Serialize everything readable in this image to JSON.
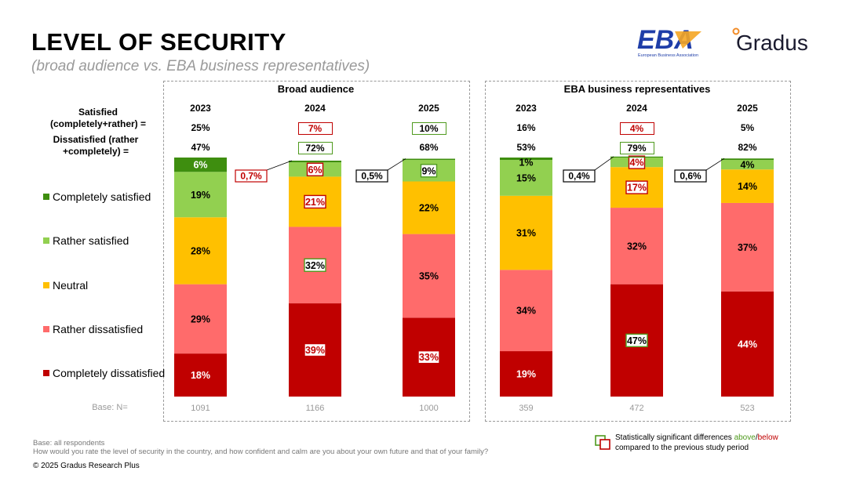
{
  "header": {
    "title": "LEVEL OF SECURITY",
    "subtitle": "(broad audience vs. EBA business representatives)"
  },
  "logos": {
    "eba_text": "EBA",
    "eba_subtext": "European Business Association",
    "gradus_text": "Gradus"
  },
  "labels": {
    "satisfied": "Satisfied (completely+rather) =",
    "dissatisfied": "Dissatisfied (rather +completely) =",
    "base": "Base: N="
  },
  "colors": {
    "completely_satisfied": "#3e8e0f",
    "rather_satisfied": "#92d050",
    "neutral": "#ffc000",
    "rather_dissatisfied": "#ff6b6b",
    "completely_dissatisfied": "#c00000",
    "above": "#4f9a1e",
    "below": "#c00000"
  },
  "chart_data": {
    "type": "bar",
    "stacked": true,
    "groups": [
      "Broad audience",
      "EBA business representatives"
    ],
    "categories": [
      "2023",
      "2024",
      "2025",
      "2023",
      "2024",
      "2025"
    ],
    "series": [
      {
        "name": "Completely dissatisfied",
        "values": [
          18,
          39,
          33,
          19,
          47,
          44
        ]
      },
      {
        "name": "Rather dissatisfied",
        "values": [
          29,
          32,
          35,
          34,
          32,
          37
        ]
      },
      {
        "name": "Neutral",
        "values": [
          28,
          21,
          22,
          31,
          17,
          14
        ]
      },
      {
        "name": "Rather satisfied",
        "values": [
          19,
          6,
          9,
          15,
          4,
          4
        ]
      },
      {
        "name": "Completely satisfied",
        "values": [
          6,
          0.7,
          0.5,
          1,
          0.4,
          0.6
        ]
      }
    ],
    "value_labels": [
      [
        "18%",
        "39%",
        "33%",
        "19%",
        "47%",
        "44%"
      ],
      [
        "29%",
        "32%",
        "35%",
        "34%",
        "32%",
        "37%"
      ],
      [
        "28%",
        "21%",
        "22%",
        "31%",
        "17%",
        "14%"
      ],
      [
        "19%",
        "6%",
        "9%",
        "15%",
        "4%",
        "4%"
      ],
      [
        "6%",
        "0,7%",
        "0,5%",
        "1%",
        "0,4%",
        "0,6%"
      ]
    ],
    "significance": [
      [
        "",
        "below",
        "below",
        "",
        "above",
        ""
      ],
      [
        "",
        "above",
        "",
        "",
        "",
        ""
      ],
      [
        "",
        "below",
        "",
        "",
        "below",
        ""
      ],
      [
        "",
        "below",
        "above",
        "",
        "below",
        ""
      ],
      [
        "",
        "below",
        "",
        "",
        "",
        ""
      ]
    ],
    "satisfied_totals": [
      "25%",
      "7%",
      "10%",
      "16%",
      "4%",
      "5%"
    ],
    "satisfied_sig": [
      "",
      "below",
      "above",
      "",
      "below",
      ""
    ],
    "dissatisfied_totals": [
      "47%",
      "72%",
      "68%",
      "53%",
      "79%",
      "82%"
    ],
    "dissatisfied_sig": [
      "",
      "above",
      "",
      "",
      "above",
      ""
    ],
    "bases": [
      "1091",
      "1166",
      "1000",
      "359",
      "472",
      "523"
    ],
    "legend": [
      "Completely satisfied",
      "Rather satisfied",
      "Neutral",
      "Rather dissatisfied",
      "Completely dissatisfied"
    ]
  },
  "footer": {
    "base_note": "Base: all respondents",
    "question": "How would you rate the level of security in the country, and how confident and calm are you about your own future and that of your family?",
    "copyright": "© 2025 Gradus Research Plus",
    "sig_legend_1": "Statistically significant differences ",
    "sig_above": "above",
    "sig_slash": "/",
    "sig_below": "below",
    "sig_legend_2": "compared to the previous study period"
  }
}
